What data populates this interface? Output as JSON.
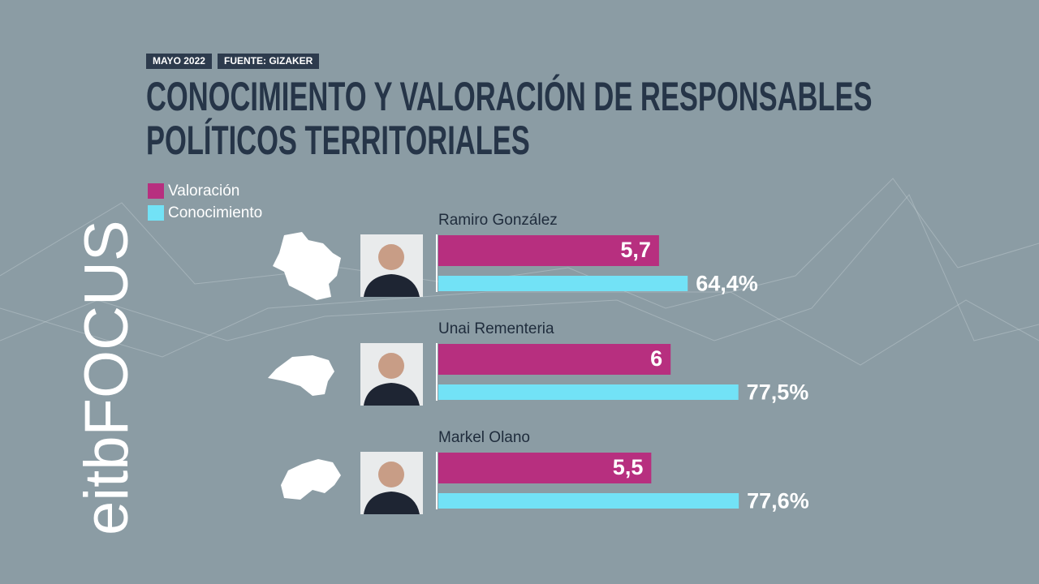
{
  "chart_data": {
    "type": "bar",
    "orientation": "horizontal",
    "date": "MAYO 2022",
    "source": "FUENTE: GIZAKER",
    "title": "CONOCIMIENTO Y VALORACIÓN DE RESPONSABLES POLÍTICOS TERRITORIALES",
    "logo": "eitbFOCUS",
    "categories": [
      "Ramiro González",
      "Unai Rementeria",
      "Markel Olano"
    ],
    "xlim": [
      0,
      10
    ],
    "x2lim": [
      0,
      100
    ],
    "series": [
      {
        "name": "Valoración",
        "color": "#b72f7f",
        "values": [
          5.7,
          6,
          5.5
        ],
        "value_labels": [
          "5,7",
          "6",
          "5,5"
        ]
      },
      {
        "name": "Conocimiento",
        "color": "#72e2f6",
        "axis": "x2",
        "values": [
          64.4,
          77.5,
          77.6
        ],
        "value_labels": [
          "64,4%",
          "77,5%",
          "77,6%"
        ]
      }
    ]
  }
}
